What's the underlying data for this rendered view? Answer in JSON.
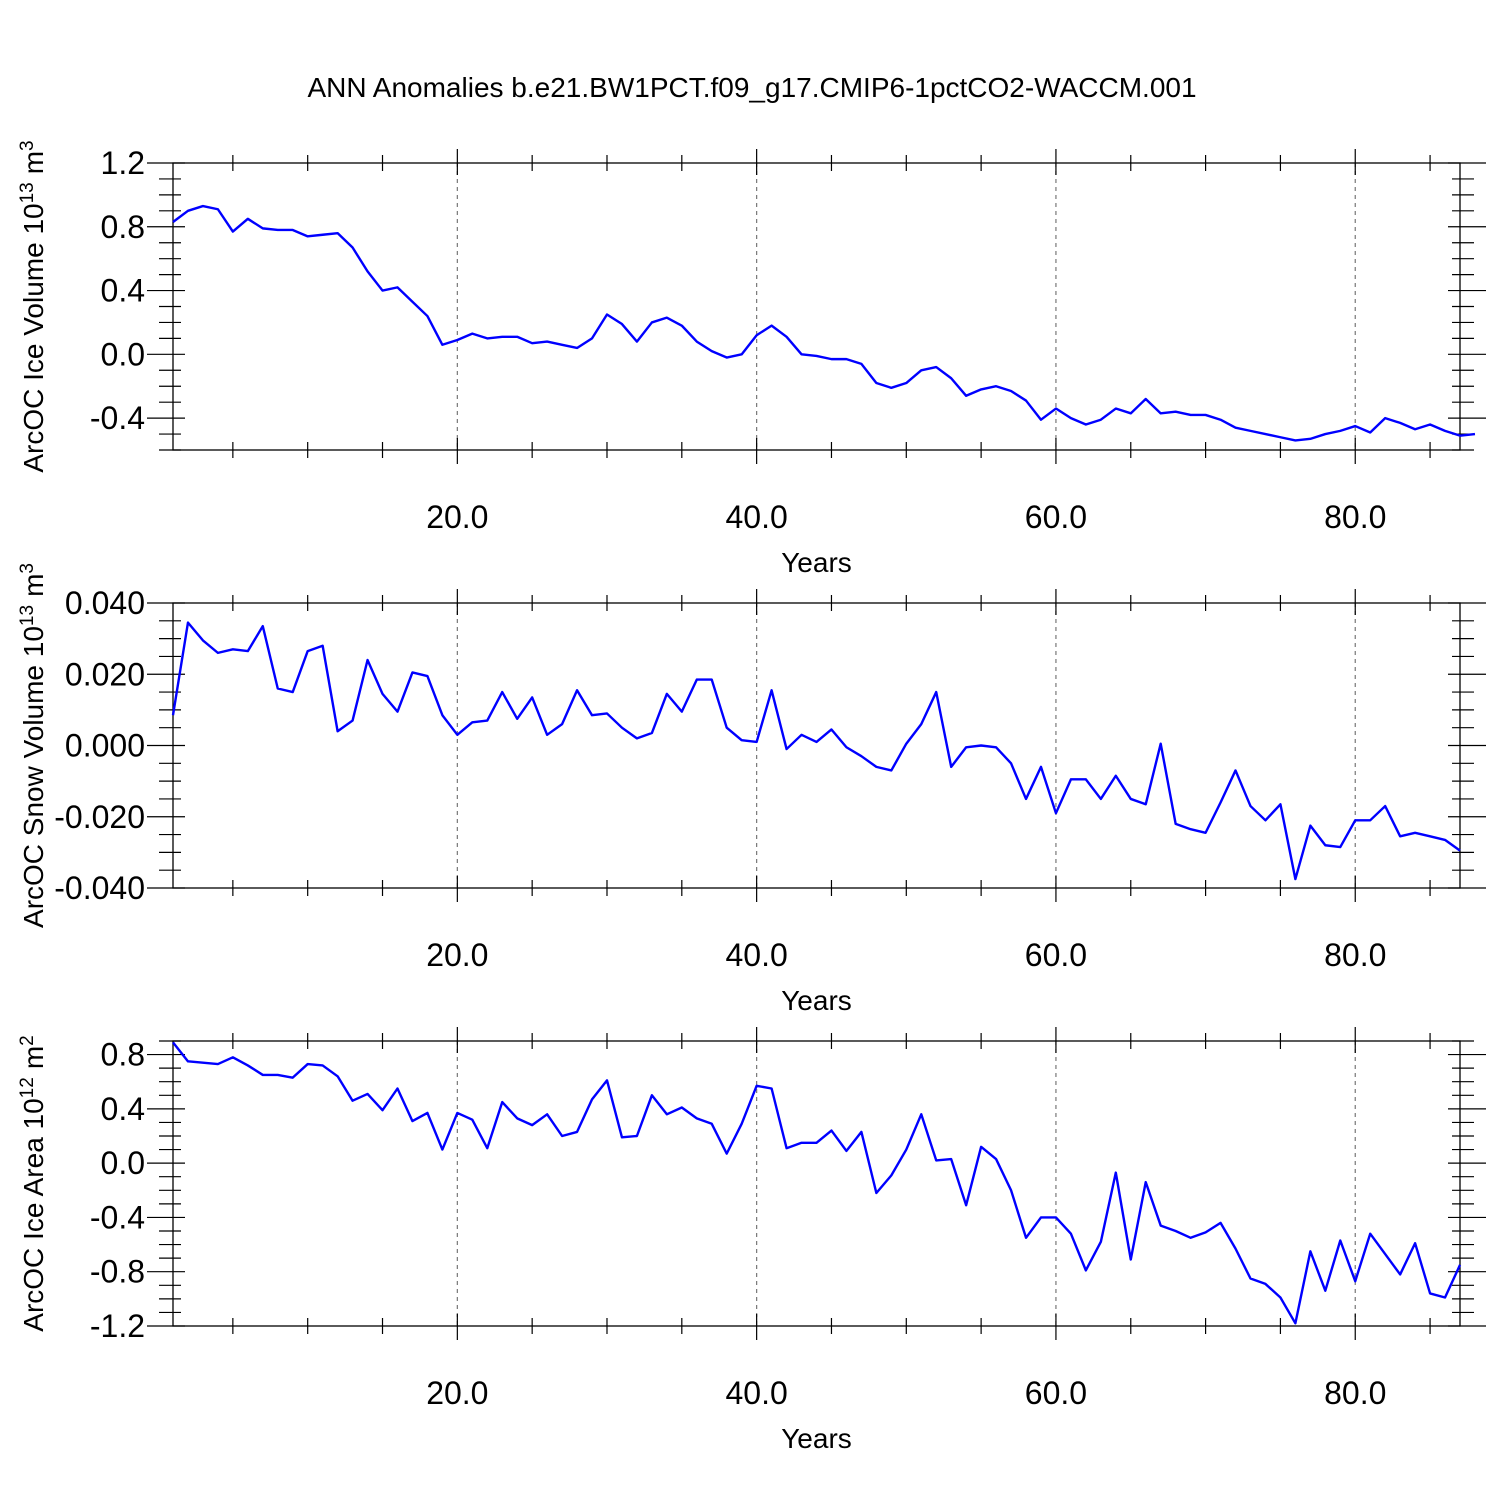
{
  "title": "ANN Anomalies b.e21.BW1PCT.f09_g17.CMIP6-1pctCO2-WACCM.001",
  "colors": {
    "line": "#0000ff",
    "grid": "#777777",
    "axis": "#000000"
  },
  "chart_data": [
    {
      "type": "line",
      "title": "",
      "xlabel": "Years",
      "ylabel": "ArcOC Ice Volume 10",
      "ylabel_sup": "13",
      "ylabel_unit": "m",
      "ylabel_unit_sup": "3",
      "xlim": [
        1,
        87
      ],
      "ylim": [
        -0.6,
        1.2
      ],
      "x_major_ticks": [
        20,
        40,
        60,
        80
      ],
      "x_tick_labels": [
        "20.0",
        "40.0",
        "60.0",
        "80.0"
      ],
      "y_major_ticks": [
        -0.4,
        0.0,
        0.4,
        0.8,
        1.2
      ],
      "y_tick_labels": [
        "-0.4",
        "0.0",
        "0.4",
        "0.8",
        "1.2"
      ],
      "grid": "dashed vertical lines at major x ticks",
      "x_start": 1,
      "series": [
        {
          "values": [
            0.83,
            0.9,
            0.93,
            0.91,
            0.77,
            0.85,
            0.79,
            0.78,
            0.78,
            0.74,
            0.75,
            0.76,
            0.67,
            0.52,
            0.4,
            0.42,
            0.33,
            0.24,
            0.06,
            0.09,
            0.13,
            0.1,
            0.11,
            0.11,
            0.07,
            0.08,
            0.06,
            0.04,
            0.1,
            0.25,
            0.19,
            0.08,
            0.2,
            0.23,
            0.18,
            0.08,
            0.02,
            -0.02,
            0.0,
            0.12,
            0.18,
            0.11,
            0.0,
            -0.01,
            -0.03,
            -0.03,
            -0.06,
            -0.18,
            -0.21,
            -0.18,
            -0.1,
            -0.08,
            -0.15,
            -0.26,
            -0.22,
            -0.2,
            -0.23,
            -0.29,
            -0.41,
            -0.34,
            -0.4,
            -0.44,
            -0.41,
            -0.34,
            -0.37,
            -0.28,
            -0.37,
            -0.36,
            -0.38,
            -0.38,
            -0.41,
            -0.46,
            -0.48,
            -0.5,
            -0.52,
            -0.54,
            -0.53,
            -0.5,
            -0.48,
            -0.45,
            -0.49,
            -0.4,
            -0.43,
            -0.47,
            -0.44,
            -0.48,
            -0.51,
            -0.5
          ]
        }
      ]
    },
    {
      "type": "line",
      "title": "",
      "xlabel": "Years",
      "ylabel": "ArcOC Snow Volume 10",
      "ylabel_sup": "13",
      "ylabel_unit": "m",
      "ylabel_unit_sup": "3",
      "xlim": [
        1,
        87
      ],
      "ylim": [
        -0.04,
        0.04
      ],
      "x_major_ticks": [
        20,
        40,
        60,
        80
      ],
      "x_tick_labels": [
        "20.0",
        "40.0",
        "60.0",
        "80.0"
      ],
      "y_major_ticks": [
        -0.04,
        -0.02,
        0.0,
        0.02,
        0.04
      ],
      "y_tick_labels": [
        "-0.040",
        "-0.020",
        "0.000",
        "0.020",
        "0.040"
      ],
      "grid": "dashed vertical lines at major x ticks",
      "x_start": 1,
      "series": [
        {
          "values": [
            0.0085,
            0.0345,
            0.0295,
            0.026,
            0.027,
            0.0265,
            0.0335,
            0.016,
            0.015,
            0.0265,
            0.028,
            0.004,
            0.007,
            0.024,
            0.0145,
            0.0095,
            0.0205,
            0.0195,
            0.0085,
            0.003,
            0.0065,
            0.007,
            0.015,
            0.0075,
            0.0135,
            0.003,
            0.006,
            0.0155,
            0.0085,
            0.009,
            0.005,
            0.002,
            0.0035,
            0.0145,
            0.0095,
            0.0185,
            0.0185,
            0.005,
            0.0015,
            0.001,
            0.0155,
            -0.001,
            0.003,
            0.001,
            0.0045,
            -0.0005,
            -0.003,
            -0.006,
            -0.007,
            0.0005,
            0.006,
            0.015,
            -0.006,
            -0.0005,
            0.0,
            -0.0005,
            -0.005,
            -0.015,
            -0.006,
            -0.019,
            -0.0095,
            -0.0095,
            -0.015,
            -0.0085,
            -0.015,
            -0.0165,
            0.0005,
            -0.022,
            -0.0235,
            -0.0245,
            -0.016,
            -0.007,
            -0.017,
            -0.021,
            -0.0165,
            -0.0375,
            -0.0225,
            -0.028,
            -0.0285,
            -0.021,
            -0.021,
            -0.017,
            -0.0255,
            -0.0245,
            -0.0255,
            -0.0265,
            -0.0295
          ]
        }
      ]
    },
    {
      "type": "line",
      "title": "",
      "xlabel": "Years",
      "ylabel": "ArcOC Ice Area 10",
      "ylabel_sup": "12",
      "ylabel_unit": "m",
      "ylabel_unit_sup": "2",
      "xlim": [
        1,
        87
      ],
      "ylim": [
        -1.2,
        0.9
      ],
      "x_major_ticks": [
        20,
        40,
        60,
        80
      ],
      "x_tick_labels": [
        "20.0",
        "40.0",
        "60.0",
        "80.0"
      ],
      "y_major_ticks": [
        -1.2,
        -0.8,
        -0.4,
        0.0,
        0.4,
        0.8
      ],
      "y_tick_labels": [
        "-1.2",
        "-0.8",
        "-0.4",
        "0.0",
        "0.4",
        "0.8"
      ],
      "grid": "dashed vertical lines at major x ticks",
      "x_start": 1,
      "series": [
        {
          "values": [
            0.89,
            0.75,
            0.74,
            0.73,
            0.78,
            0.72,
            0.65,
            0.65,
            0.63,
            0.73,
            0.72,
            0.64,
            0.46,
            0.51,
            0.39,
            0.55,
            0.31,
            0.37,
            0.1,
            0.37,
            0.32,
            0.11,
            0.45,
            0.33,
            0.28,
            0.36,
            0.2,
            0.23,
            0.47,
            0.61,
            0.19,
            0.2,
            0.5,
            0.36,
            0.41,
            0.33,
            0.29,
            0.07,
            0.29,
            0.57,
            0.55,
            0.11,
            0.15,
            0.15,
            0.24,
            0.09,
            0.23,
            -0.22,
            -0.09,
            0.1,
            0.36,
            0.02,
            0.03,
            -0.31,
            0.12,
            0.03,
            -0.2,
            -0.55,
            -0.4,
            -0.4,
            -0.52,
            -0.79,
            -0.58,
            -0.07,
            -0.71,
            -0.14,
            -0.46,
            -0.5,
            -0.55,
            -0.51,
            -0.44,
            -0.63,
            -0.85,
            -0.89,
            -0.99,
            -1.18,
            -0.65,
            -0.94,
            -0.57,
            -0.87,
            -0.52,
            -0.67,
            -0.82,
            -0.59,
            -0.96,
            -0.99,
            -0.75
          ]
        }
      ]
    }
  ]
}
